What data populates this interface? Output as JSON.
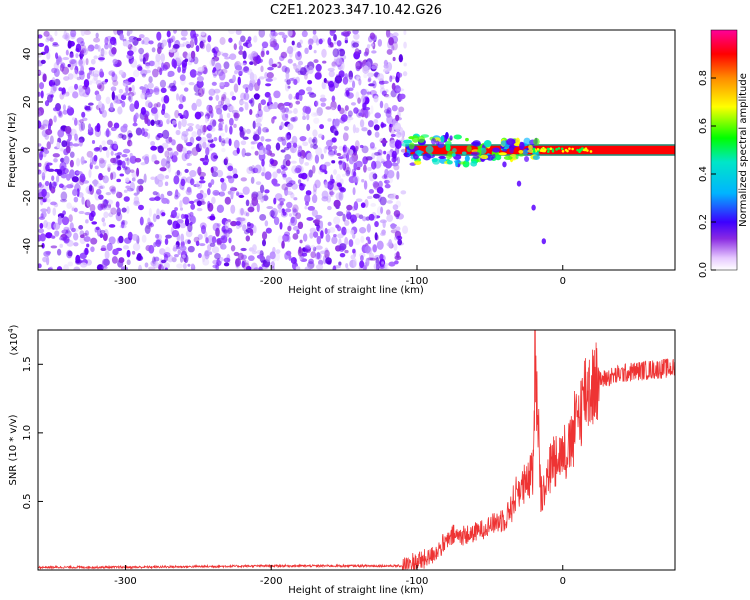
{
  "chart_data": [
    {
      "type": "heatmap",
      "title": "C2E1.2023.347.10.42.G26",
      "xlabel": "Height of straight line (km)",
      "ylabel": "Frequency (Hz)",
      "xlim": [
        -360,
        77
      ],
      "ylim": [
        -50,
        50
      ],
      "x_ticks": [
        -300,
        -200,
        -100,
        0
      ],
      "x_tick_labels": [
        "-300",
        "-200",
        "-100",
        "0"
      ],
      "y_ticks": [
        -40,
        -20,
        0,
        20,
        40
      ],
      "y_tick_labels": [
        "-40",
        "-20",
        "0",
        "20",
        "40"
      ],
      "noise_region": {
        "x": [
          -360,
          -108
        ],
        "frequency": [
          -50,
          50
        ]
      },
      "signal_band": {
        "x": [
          -108,
          77
        ],
        "frequency": [
          -2,
          2
        ]
      },
      "tail": [
        {
          "x": -40,
          "frequency": -6
        },
        {
          "x": -30,
          "frequency": -14
        },
        {
          "x": -20,
          "frequency": -24
        },
        {
          "x": -13,
          "frequency": -38
        }
      ],
      "colorbar": {
        "label": "Normalized spectral amplitude",
        "range": [
          0,
          1
        ],
        "ticks": [
          0.0,
          0.2,
          0.4,
          0.6,
          0.8
        ],
        "tick_labels": [
          "0.0",
          "0.2",
          "0.4",
          "0.6",
          "0.8"
        ],
        "colors": [
          "#ffffff",
          "#8a2be2",
          "#3c00ff",
          "#00b4ff",
          "#00e6c8",
          "#00ff00",
          "#ffff00",
          "#ff8c00",
          "#ff0000",
          "#ff0099"
        ]
      },
      "grid": false
    },
    {
      "type": "line",
      "xlabel": "Height of straight line (km)",
      "ylabel": "SNR (10 * v/v)",
      "multiplier_label": "(x10",
      "multiplier_exponent": "4",
      "multiplier_close": ")",
      "xlim": [
        -360,
        77
      ],
      "ylim": [
        0,
        1.75
      ],
      "x_ticks": [
        -300,
        -200,
        -100,
        0
      ],
      "x_tick_labels": [
        "-300",
        "-200",
        "-100",
        "0"
      ],
      "y_ticks": [
        0.5,
        1.0,
        1.5
      ],
      "y_tick_labels": [
        "0.5",
        "1.0",
        "1.5"
      ],
      "series_color": "#ee3333",
      "series": [
        {
          "x": [
            -360,
            -300,
            -200,
            -110,
            -95,
            -85,
            -75,
            -65,
            -55,
            -45,
            -38,
            -30,
            -25,
            -20,
            -19,
            -15,
            -10,
            -5,
            0,
            5,
            10,
            15,
            20,
            25,
            30,
            40,
            50,
            60,
            70,
            77
          ],
          "values": [
            0.02,
            0.02,
            0.03,
            0.03,
            0.07,
            0.15,
            0.25,
            0.25,
            0.3,
            0.35,
            0.4,
            0.6,
            0.6,
            0.75,
            1.75,
            0.55,
            0.7,
            0.85,
            0.85,
            0.9,
            1.1,
            1.3,
            1.35,
            1.38,
            1.4,
            1.43,
            1.45,
            1.46,
            1.47,
            1.47
          ]
        }
      ],
      "grid": false
    }
  ]
}
